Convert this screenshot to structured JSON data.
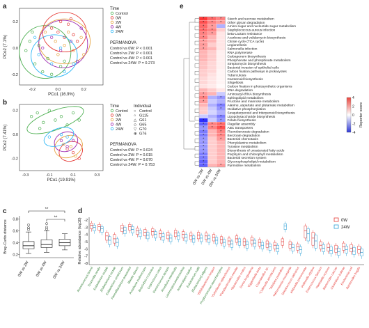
{
  "panels": {
    "a": {
      "label": "a",
      "xlabel": "PCo1 (16.9%)",
      "ylabel": "PCo2 (7.1%)",
      "xticks": [
        "-0.2",
        "0.0",
        "0.2"
      ],
      "yticks": [
        "0.2",
        "0.0",
        "-0.2"
      ],
      "legend_title": "Time",
      "legend": [
        "Control",
        "0W",
        "2W",
        "4W",
        "24W"
      ],
      "permanova_title": "PERMANOVA",
      "stats": [
        "Control vs 0W: P < 0.001",
        "Control vs 2W: P < 0.001",
        "Control vs 4W: P < 0.001",
        "Control vs 24W: P = 0.273"
      ]
    },
    "b": {
      "label": "b",
      "xlabel": "PCo1 (19.91%)",
      "ylabel": "PCo2 (7.41%)",
      "xticks": [
        "-0.3",
        "-0.1",
        "0.1",
        "0.3"
      ],
      "yticks": [
        "0.2",
        "0.0",
        "-0.2"
      ],
      "legend_title": "Time",
      "legend": [
        "Control",
        "0W",
        "2W",
        "4W",
        "24W"
      ],
      "individual_title": "Individual",
      "individuals": [
        "Control",
        "G115",
        "G61",
        "G65",
        "G70",
        "G76"
      ],
      "permanova_title": "PERMANOVA",
      "stats": [
        "Control vs 0W: P = 0.024",
        "Control vs 2W: P = 0.015",
        "Control vs 4W: P = 0.070",
        "Control vs 24W: P = 0.753"
      ]
    },
    "c": {
      "label": "c",
      "ylabel": "Bray-Curtis distance",
      "yticks": [
        "0.8",
        "0.6",
        "0.4",
        "0.2"
      ],
      "categories": [
        "0W vs 2W",
        "0W vs 4W",
        "0W vs 24W"
      ],
      "sig": [
        "**",
        "**"
      ]
    },
    "d": {
      "label": "d",
      "ylabel": "Relative abundance (log10)",
      "yticks": [
        "-2",
        "-3",
        "-4",
        "-5",
        "-6",
        "-7",
        "-8"
      ],
      "legend": [
        "0W",
        "24W"
      ],
      "taxa": [
        "Ruminococcus bromii",
        "Tyzzerella nexilis",
        "Eubacterium rectale",
        "[Eubacterium] rectale",
        "Eubacterium ventriosum",
        "Faecalibacterium prausnitzii",
        "Blautia obeum",
        "Roseburia inulinivorans",
        "Butyrivibrio crossotus",
        "Coprococcus catus",
        "Ruminococcus lactaris",
        "Roseburia intestinalis",
        "Lachnospira pectinoschiza",
        "Anaerostipes hadrus",
        "Eubacterium hallii",
        "[Eubacterium] eligens",
        "*Bifidobacterium longum",
        "Porphyromonas asaccharolytica",
        "*Odoribacter splanchnicus",
        "*Parabacteroides merdae",
        "*Bacteroides ovatus",
        "Dorea longicatena",
        "*Eggerthella lenta",
        "Coprobacillus sp.",
        "*Collinsella aerofaciens",
        "*Alistipes putredinis",
        "*Akkermansia muciniphila",
        "Streptococcus salivarius",
        "Klebsiella pneumoniae",
        "Veillonella atypica",
        "Enterococcus faecium",
        "*Klebsiella oxytoca",
        "Bacteroides caccae",
        "Clostridium bolteae",
        "Escherichia coli",
        "Bacteroides fragilis"
      ]
    },
    "e": {
      "label": "e",
      "xcategories": [
        "0W vs 2W",
        "0W vs 4W",
        "0W vs 24W"
      ],
      "colorbar_title": "Reporter score",
      "colorbar_ticks": [
        "4",
        "2",
        "0",
        "-2",
        "-4"
      ],
      "pathways": [
        "Starch and sucrose metabolism",
        "Other glycan degradation",
        "Amino sugar and nucleotide sugar metabolism",
        "Staphylococcus aureus infection",
        "beta-Lactam resistance",
        "Acarbose and validamycin biosynthesis",
        "Citrate cycle (TCA cycle)",
        "Legionellosis",
        "Salmonella infection",
        "RNA polymerase",
        "Carbapenem biosynthesis",
        "Phosphonate and phosphinate metabolism",
        "Streptomycin biosynthesis",
        "Bacterial invasion of epithelial cells",
        "Carbon fixation pathways in prokaryotes",
        "Tuberculosis",
        "Carotenoid biosynthesis",
        "Shigellosis",
        "Carbon fixation in photosynthetic organisms",
        "RNA degradation",
        "Aminoacyl-tRNA biosynthesis",
        "Sphingolipid metabolism",
        "Fructose and mannose metabolism",
        "Alanine, aspartate and glutamate metabolism",
        "Oxidative phosphorylation",
        "Sesquiterpenoid and triterpenoid biosynthesis",
        "Lipopolysaccharide biosynthesis",
        "Folate biosynthesis",
        "Flagellar assembly",
        "ABC transporters",
        "Fluorobenzoate degradation",
        "Benzoate degradation",
        "Bacterial chemotaxis",
        "Phenylalanine metabolism",
        "Tyrosine metabolism",
        "Biosynthesis of unsaturated fatty acids",
        "Porphyrin and chlorophyll metabolism",
        "Bacterial secretion system",
        "Glycerophospholipid metabolism",
        "Pyrimidine metabolism"
      ]
    }
  },
  "chart_data": [
    {
      "type": "scatter",
      "panel": "a",
      "xlabel": "PCo1 (16.9%)",
      "ylabel": "PCo2 (7.1%)",
      "xlim": [
        -0.3,
        0.35
      ],
      "ylim": [
        -0.28,
        0.3
      ],
      "series": [
        {
          "name": "Control",
          "color": "#4caf50",
          "points": [
            [
              -0.22,
              0.05
            ],
            [
              -0.25,
              -0.02
            ],
            [
              -0.18,
              -0.12
            ],
            [
              -0.12,
              -0.18
            ],
            [
              -0.05,
              -0.2
            ],
            [
              0.02,
              -0.14
            ],
            [
              -0.2,
              0.12
            ],
            [
              -0.15,
              0.02
            ],
            [
              -0.08,
              -0.08
            ],
            [
              0.05,
              -0.1
            ]
          ]
        },
        {
          "name": "0W",
          "color": "#e53935",
          "points": [
            [
              0.02,
              0.2
            ],
            [
              0.08,
              0.18
            ],
            [
              0.12,
              0.1
            ],
            [
              -0.05,
              0.15
            ],
            [
              0.15,
              0.05
            ],
            [
              0.05,
              0.08
            ],
            [
              0.0,
              0.12
            ],
            [
              0.1,
              0.22
            ]
          ]
        },
        {
          "name": "2W",
          "color": "#e6a23c",
          "points": [
            [
              -0.1,
              0.12
            ],
            [
              0.05,
              0.02
            ],
            [
              0.12,
              -0.02
            ],
            [
              -0.02,
              0.05
            ],
            [
              0.18,
              0.08
            ],
            [
              0.2,
              -0.05
            ],
            [
              0.0,
              -0.05
            ],
            [
              0.08,
              0.12
            ]
          ]
        },
        {
          "name": "4W",
          "color": "#9c27b0",
          "points": [
            [
              -0.05,
              0.08
            ],
            [
              0.1,
              0.05
            ],
            [
              0.18,
              0.15
            ],
            [
              0.02,
              -0.02
            ],
            [
              0.15,
              -0.1
            ],
            [
              -0.12,
              0.0
            ]
          ]
        },
        {
          "name": "24W",
          "color": "#29b6f6",
          "points": [
            [
              -0.15,
              -0.05
            ],
            [
              -0.05,
              -0.12
            ],
            [
              0.05,
              -0.18
            ],
            [
              0.12,
              -0.12
            ],
            [
              -0.18,
              0.08
            ],
            [
              0.02,
              0.0
            ]
          ]
        }
      ]
    },
    {
      "type": "scatter",
      "panel": "b",
      "xlabel": "PCo1 (19.91%)",
      "ylabel": "PCo2 (7.41%)",
      "xlim": [
        -0.35,
        0.35
      ],
      "ylim": [
        -0.3,
        0.25
      ],
      "series": [
        {
          "name": "Control",
          "color": "#4caf50",
          "points": [
            [
              -0.25,
              0.15
            ],
            [
              -0.2,
              0.18
            ],
            [
              -0.15,
              0.1
            ],
            [
              -0.1,
              0.2
            ],
            [
              -0.05,
              0.12
            ],
            [
              0.0,
              0.15
            ],
            [
              0.05,
              0.08
            ],
            [
              0.1,
              0.18
            ],
            [
              -0.18,
              0.05
            ],
            [
              0.15,
              0.12
            ]
          ]
        },
        {
          "name": "0W",
          "color": "#e53935",
          "points": [
            [
              0.1,
              -0.15
            ],
            [
              0.15,
              -0.2
            ],
            [
              0.05,
              -0.12
            ]
          ]
        },
        {
          "name": "2W",
          "color": "#e6a23c",
          "points": [
            [
              0.08,
              -0.1
            ],
            [
              0.12,
              -0.18
            ],
            [
              0.02,
              -0.08
            ]
          ]
        },
        {
          "name": "4W",
          "color": "#9c27b0",
          "points": [
            [
              0.0,
              -0.05
            ],
            [
              0.05,
              -0.1
            ],
            [
              0.1,
              -0.05
            ]
          ]
        },
        {
          "name": "24W",
          "color": "#29b6f6",
          "points": [
            [
              -0.1,
              -0.02
            ],
            [
              0.0,
              0.0
            ],
            [
              0.05,
              -0.02
            ]
          ]
        }
      ]
    },
    {
      "type": "box",
      "panel": "c",
      "ylabel": "Bray-Curtis distance",
      "categories": [
        "0W vs 2W",
        "0W vs 4W",
        "0W vs 24W"
      ],
      "ylim": [
        0.15,
        0.85
      ],
      "boxes": [
        {
          "min": 0.22,
          "q1": 0.3,
          "median": 0.35,
          "q3": 0.42,
          "max": 0.58
        },
        {
          "min": 0.24,
          "q1": 0.32,
          "median": 0.37,
          "q3": 0.45,
          "max": 0.6
        },
        {
          "min": 0.28,
          "q1": 0.35,
          "median": 0.4,
          "q3": 0.46,
          "max": 0.55
        }
      ],
      "outliers": [
        [
          0,
          0.65
        ],
        [
          0,
          0.7
        ],
        [
          0,
          0.62
        ],
        [
          1,
          0.66
        ],
        [
          1,
          0.72
        ],
        [
          1,
          0.63
        ]
      ]
    },
    {
      "type": "box",
      "panel": "d",
      "ylabel": "Relative abundance (log10)",
      "ylim": [
        -8.2,
        -1.6
      ],
      "series_names": [
        "0W",
        "24W"
      ],
      "colors": {
        "0W": "#e53935",
        "24W": "#2a9fd6"
      },
      "boxes_0W": [
        [
          -3.2,
          -2.7,
          -2.4
        ],
        [
          -3.4,
          -2.9,
          -2.6
        ],
        [
          -4.8,
          -4.2,
          -3.7
        ],
        [
          -5.2,
          -4.6,
          -4.0
        ],
        [
          -3.6,
          -3.1,
          -2.7
        ],
        [
          -3.4,
          -2.9,
          -2.6
        ],
        [
          -4.0,
          -3.5,
          -3.1
        ],
        [
          -4.2,
          -3.7,
          -3.3
        ],
        [
          -4.1,
          -3.6,
          -3.2
        ],
        [
          -4.4,
          -3.9,
          -3.5
        ],
        [
          -4.6,
          -4.1,
          -3.7
        ],
        [
          -4.3,
          -3.8,
          -3.4
        ],
        [
          -4.5,
          -4.0,
          -3.6
        ],
        [
          -4.7,
          -4.2,
          -3.8
        ],
        [
          -4.6,
          -4.1,
          -3.7
        ],
        [
          -4.7,
          -4.2,
          -3.8
        ],
        [
          -4.9,
          -4.4,
          -4.0
        ],
        [
          -5.2,
          -4.7,
          -4.3
        ],
        [
          -5.4,
          -4.9,
          -4.5
        ],
        [
          -5.1,
          -4.6,
          -4.2
        ],
        [
          -5.5,
          -5.0,
          -4.6
        ],
        [
          -5.3,
          -4.8,
          -4.4
        ],
        [
          -5.6,
          -5.1,
          -4.7
        ],
        [
          -5.8,
          -5.3,
          -4.9
        ],
        [
          -6.0,
          -5.5,
          -5.1
        ],
        [
          -5.5,
          -5.0,
          -4.6
        ],
        [
          -5.9,
          -5.4,
          -5.0
        ],
        [
          -6.2,
          -5.7,
          -5.3
        ],
        [
          -4.5,
          -3.5,
          -2.8
        ],
        [
          -5.5,
          -4.5,
          -3.7
        ],
        [
          -6.0,
          -5.5,
          -5.0
        ],
        [
          -6.3,
          -5.8,
          -5.3
        ],
        [
          -6.5,
          -6.0,
          -5.5
        ],
        [
          -6.2,
          -5.7,
          -5.2
        ],
        [
          -6.4,
          -5.9,
          -5.4
        ],
        [
          -6.6,
          -6.1,
          -5.6
        ]
      ],
      "boxes_24W": [
        [
          -3.5,
          -3.0,
          -2.7
        ],
        [
          -3.7,
          -3.2,
          -2.9
        ],
        [
          -5.4,
          -4.8,
          -4.3
        ],
        [
          -5.6,
          -5.1,
          -4.6
        ],
        [
          -3.9,
          -3.4,
          -3.0
        ],
        [
          -3.8,
          -3.3,
          -2.9
        ],
        [
          -4.3,
          -3.8,
          -3.4
        ],
        [
          -4.6,
          -4.1,
          -3.7
        ],
        [
          -4.5,
          -4.0,
          -3.6
        ],
        [
          -4.8,
          -4.3,
          -3.9
        ],
        [
          -5.0,
          -4.5,
          -4.1
        ],
        [
          -4.7,
          -4.2,
          -3.8
        ],
        [
          -4.9,
          -4.4,
          -4.0
        ],
        [
          -5.1,
          -4.6,
          -4.2
        ],
        [
          -5.0,
          -4.5,
          -4.1
        ],
        [
          -5.1,
          -4.6,
          -4.2
        ],
        [
          -5.3,
          -4.8,
          -4.4
        ],
        [
          -5.6,
          -5.1,
          -4.7
        ],
        [
          -5.8,
          -5.3,
          -4.9
        ],
        [
          -5.5,
          -5.0,
          -4.6
        ],
        [
          -5.9,
          -5.4,
          -5.0
        ],
        [
          -5.7,
          -5.2,
          -4.8
        ],
        [
          -6.0,
          -5.5,
          -5.1
        ],
        [
          -6.2,
          -5.7,
          -5.3
        ],
        [
          -6.4,
          -5.9,
          -5.5
        ],
        [
          -3.3,
          -2.8,
          -2.5
        ],
        [
          -6.3,
          -5.8,
          -5.4
        ],
        [
          -6.6,
          -6.1,
          -5.7
        ],
        [
          -4.9,
          -3.9,
          -3.2
        ],
        [
          -5.9,
          -4.9,
          -4.1
        ],
        [
          -6.4,
          -5.9,
          -5.4
        ],
        [
          -6.7,
          -6.2,
          -5.7
        ],
        [
          -6.9,
          -6.4,
          -5.9
        ],
        [
          -6.6,
          -6.1,
          -5.6
        ],
        [
          -6.8,
          -6.3,
          -5.8
        ],
        [
          -7.0,
          -6.5,
          -6.0
        ]
      ]
    },
    {
      "type": "heatmap",
      "panel": "e",
      "colorbar_range": [
        -4,
        4
      ],
      "x": [
        "0W vs 2W",
        "0W vs 4W",
        "0W vs 24W"
      ],
      "values": [
        [
          4,
          3,
          2.5
        ],
        [
          3.5,
          2.5,
          2
        ],
        [
          3,
          2,
          -1.5
        ],
        [
          3,
          2.5,
          1
        ],
        [
          2.5,
          2,
          0.5
        ],
        [
          2.5,
          1.5,
          0.5
        ],
        [
          2,
          1.5,
          0.5
        ],
        [
          2,
          1,
          0.5
        ],
        [
          2,
          1.5,
          0.5
        ],
        [
          1.5,
          1,
          0.3
        ],
        [
          1.5,
          1,
          0.3
        ],
        [
          1.5,
          1,
          0.3
        ],
        [
          1.2,
          0.8,
          0.3
        ],
        [
          1.2,
          0.8,
          0.3
        ],
        [
          1,
          0.8,
          0.2
        ],
        [
          1,
          0.6,
          0.2
        ],
        [
          0.8,
          0.5,
          0.2
        ],
        [
          0.8,
          0.5,
          0.2
        ],
        [
          0.6,
          0.4,
          0.1
        ],
        [
          1.5,
          1,
          0.5
        ],
        [
          2,
          1.5,
          -1
        ],
        [
          2.5,
          -1.5,
          -2
        ],
        [
          2,
          -1,
          -1.5
        ],
        [
          1.5,
          -1.5,
          -2.5
        ],
        [
          1,
          -1,
          -2
        ],
        [
          1,
          -0.8,
          -1.5
        ],
        [
          -1,
          -1.5,
          -2.5
        ],
        [
          -4,
          -1,
          -2
        ],
        [
          -3,
          2.5,
          3
        ],
        [
          -2,
          2.5,
          3.5
        ],
        [
          -2.5,
          1.5,
          2.5
        ],
        [
          -2.5,
          1.5,
          2.5
        ],
        [
          -2,
          1,
          2
        ],
        [
          -2,
          1,
          1.5
        ],
        [
          -2,
          1,
          1.5
        ],
        [
          -2,
          1,
          1.5
        ],
        [
          -2.5,
          1,
          1.5
        ],
        [
          -2.5,
          1,
          1.5
        ],
        [
          -3,
          1,
          1.5
        ],
        [
          -3,
          1.5,
          2
        ]
      ]
    }
  ]
}
